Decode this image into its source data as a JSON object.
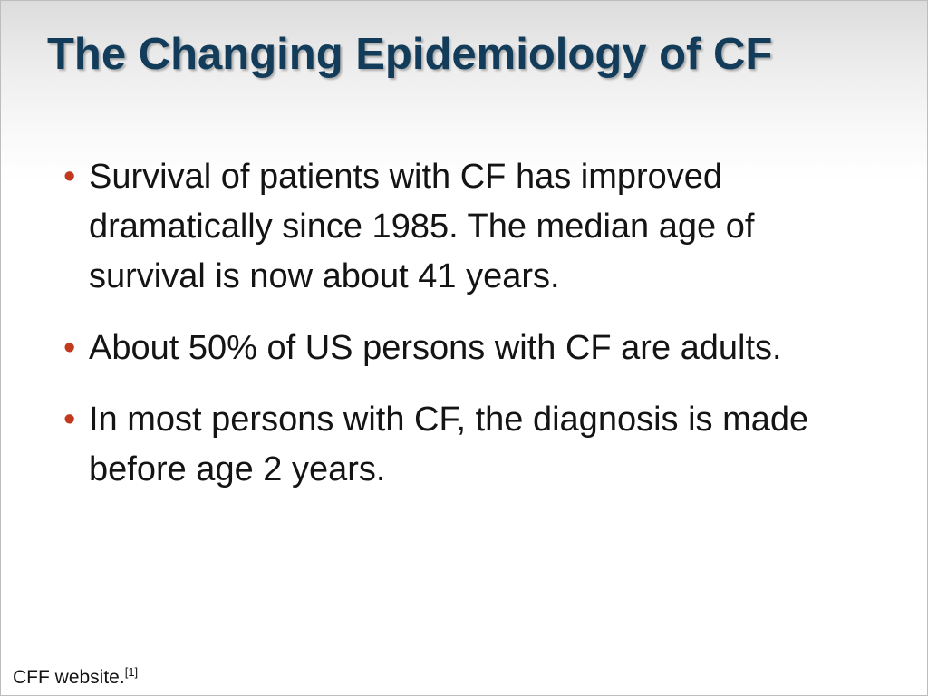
{
  "slide": {
    "title": "The Changing Epidemiology of CF",
    "bullets": [
      {
        "marker": "•",
        "text": "Survival of patients with CF has improved dramatically since 1985. The median age of survival is now about 41 years."
      },
      {
        "marker": "•",
        "text": "About 50% of US persons with CF are adults."
      },
      {
        "marker": "•",
        "text": "In most persons with CF, the diagnosis is made before age 2 years."
      }
    ],
    "footnote": {
      "text": "CFF website.",
      "reference": "[1]"
    }
  },
  "colors": {
    "title": "#123c5a",
    "bullet_marker": "#c23a1e",
    "body_text": "#141414"
  }
}
